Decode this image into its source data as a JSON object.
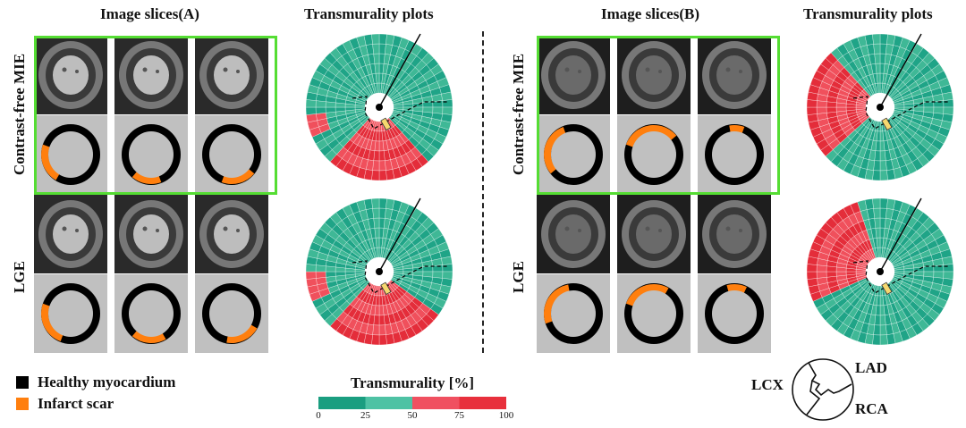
{
  "headers": {
    "slices_a": "Image slices(A)",
    "plots_a": "Transmurality plots",
    "slices_b": "Image slices(B)",
    "plots_b": "Transmurality plots"
  },
  "row_labels": {
    "mie_a": "Contrast-free MIE",
    "lge_a": "LGE",
    "mie_b": "Contrast-free MIE",
    "lge_b": "LGE"
  },
  "legend": {
    "healthy": "Healthy myocardium",
    "scar": "Infarct scar",
    "healthy_color": "#000000",
    "scar_color": "#ff7f0e"
  },
  "colorbar": {
    "title": "Transmurality [%]",
    "ticks": [
      "0",
      "25",
      "50",
      "75",
      "100"
    ],
    "colors": [
      "#1a9e80",
      "#4ec2a4",
      "#f05060",
      "#e8303c"
    ]
  },
  "vessels": {
    "lad": "LAD",
    "lcx": "LCX",
    "rca": "RCA"
  },
  "colors": {
    "teal": "#1fa487",
    "teal_light": "#3fb896",
    "red": "#f0505c",
    "red_dark": "#e42d3a",
    "highlight_border": "#55dd33"
  }
}
